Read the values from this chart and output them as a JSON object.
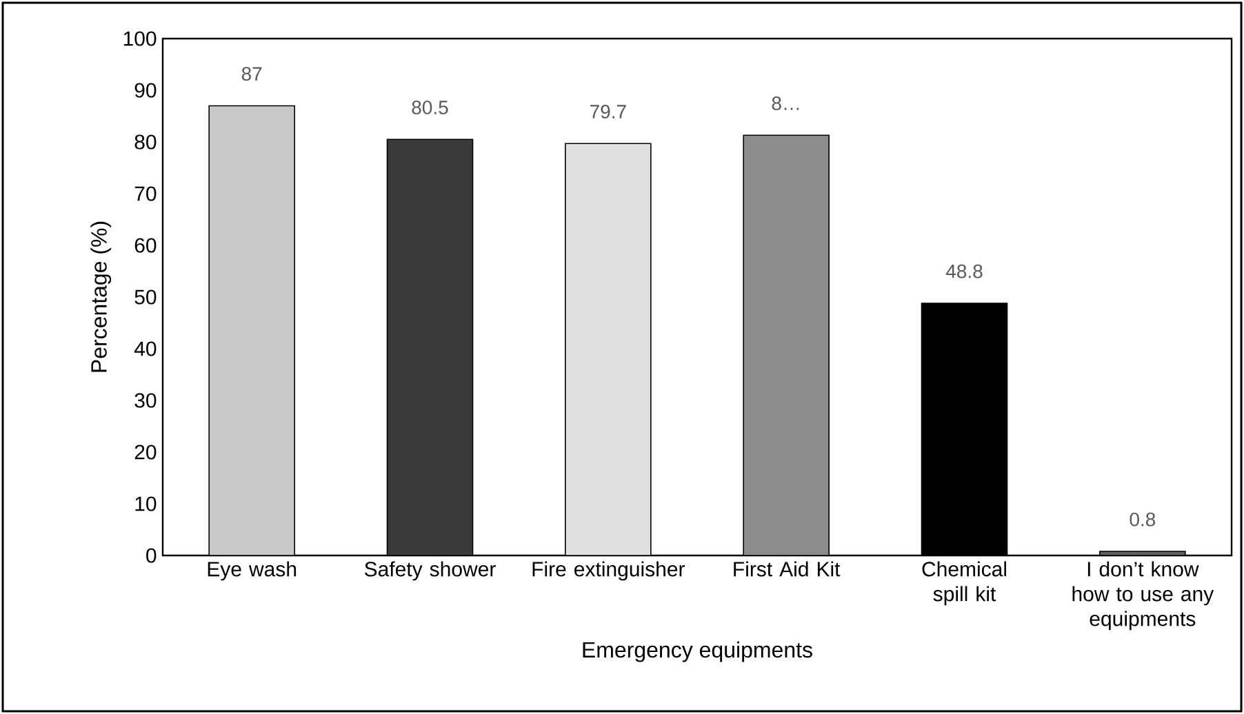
{
  "chart_data": {
    "type": "bar",
    "xlabel": "Emergency equipments",
    "ylabel": "Percentage (%)",
    "categories": [
      "Eye wash",
      "Safety shower",
      "Fire extinguisher",
      "First Aid Kit",
      "Chemical spill kit",
      "I don’t know how to use any equipments"
    ],
    "values": [
      87,
      80.5,
      79.7,
      81.3,
      48.8,
      0.8
    ],
    "value_labels": [
      "87",
      "80.5",
      "79.7",
      "8…",
      "48.8",
      "0.8"
    ],
    "colors": [
      "#c8c8c8",
      "#3a3a3a",
      "#e0e0e0",
      "#8c8c8c",
      "#000000",
      "#606060"
    ],
    "ylim": [
      0,
      100
    ],
    "yticks": [
      0,
      10,
      20,
      30,
      40,
      50,
      60,
      70,
      80,
      90,
      100
    ],
    "grid": false
  }
}
